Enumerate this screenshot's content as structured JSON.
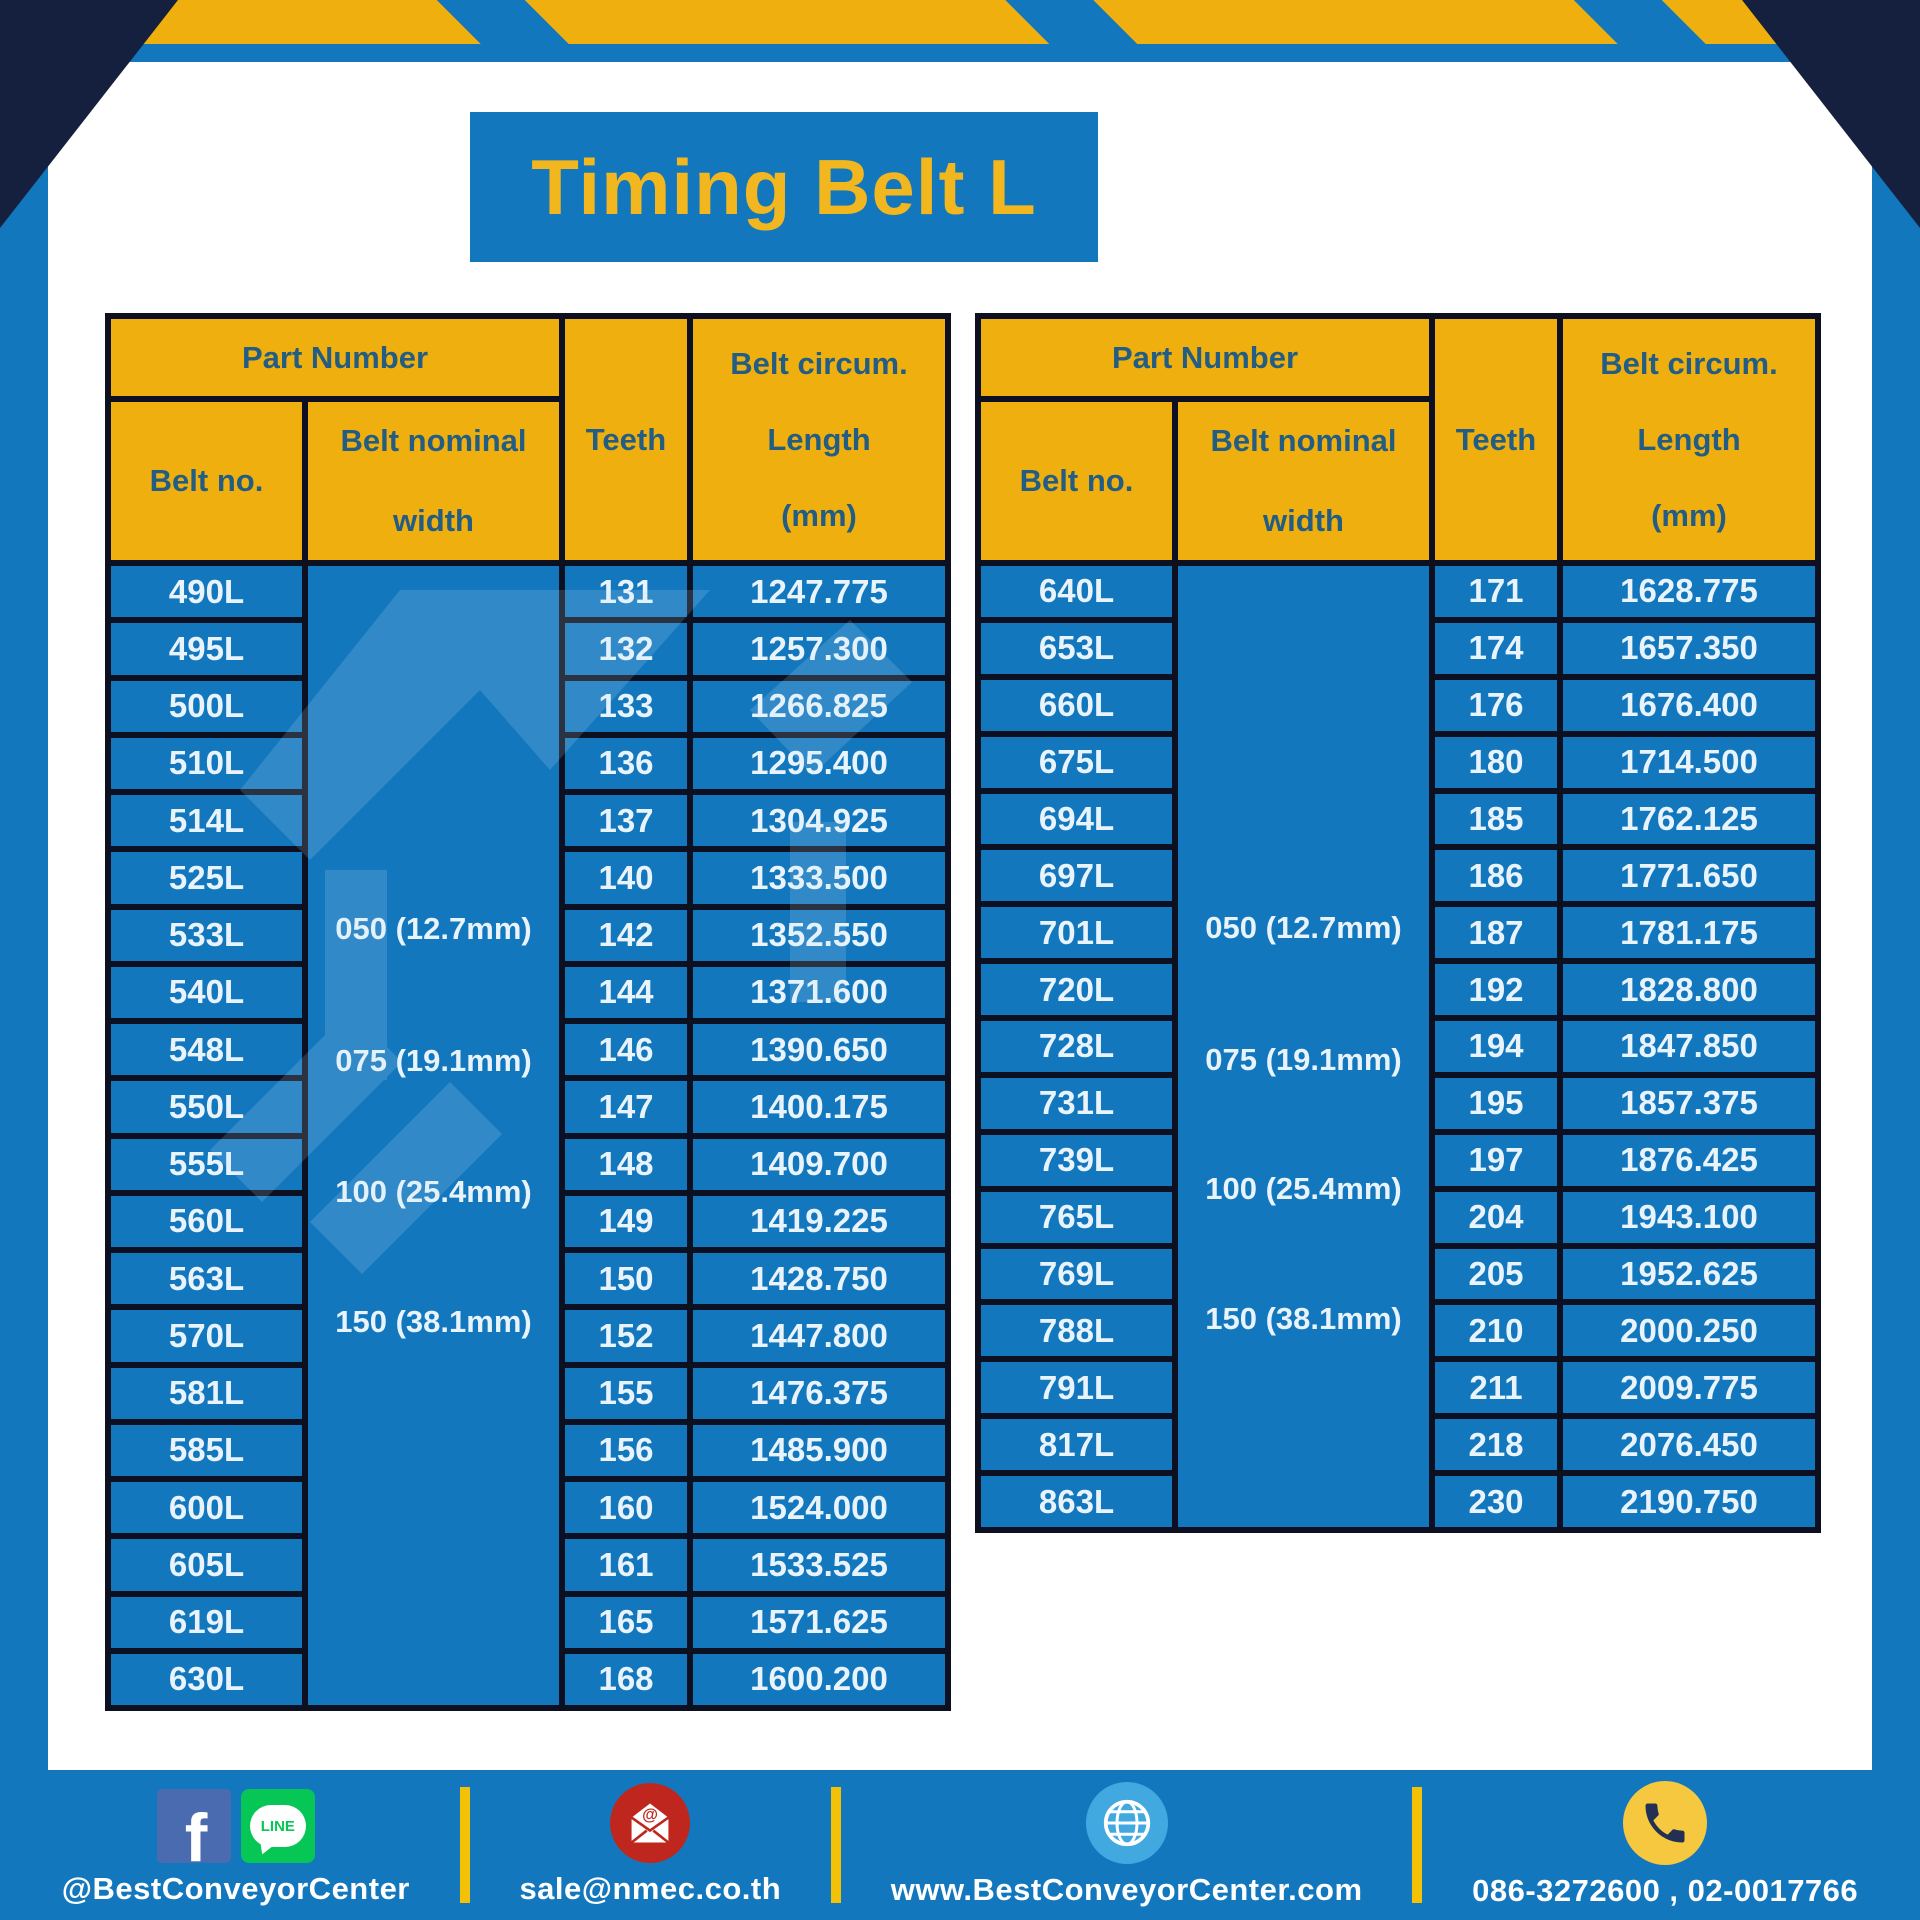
{
  "title": "Timing Belt L",
  "header": {
    "part_number": "Part Number",
    "belt_no": "Belt no.",
    "belt_nominal_1": "Belt nominal",
    "belt_nominal_2": "width",
    "teeth": "Teeth",
    "circ_1": "Belt circum.",
    "circ_2": "Length",
    "circ_3": "(mm)"
  },
  "width_options": [
    "050 (12.7mm)",
    "075 (19.1mm)",
    "100 (25.4mm)",
    "150 (38.1mm)"
  ],
  "tables": [
    {
      "rows": [
        [
          "490L",
          "131",
          "1247.775"
        ],
        [
          "495L",
          "132",
          "1257.300"
        ],
        [
          "500L",
          "133",
          "1266.825"
        ],
        [
          "510L",
          "136",
          "1295.400"
        ],
        [
          "514L",
          "137",
          "1304.925"
        ],
        [
          "525L",
          "140",
          "1333.500"
        ],
        [
          "533L",
          "142",
          "1352.550"
        ],
        [
          "540L",
          "144",
          "1371.600"
        ],
        [
          "548L",
          "146",
          "1390.650"
        ],
        [
          "550L",
          "147",
          "1400.175"
        ],
        [
          "555L",
          "148",
          "1409.700"
        ],
        [
          "560L",
          "149",
          "1419.225"
        ],
        [
          "563L",
          "150",
          "1428.750"
        ],
        [
          "570L",
          "152",
          "1447.800"
        ],
        [
          "581L",
          "155",
          "1476.375"
        ],
        [
          "585L",
          "156",
          "1485.900"
        ],
        [
          "600L",
          "160",
          "1524.000"
        ],
        [
          "605L",
          "161",
          "1533.525"
        ],
        [
          "619L",
          "165",
          "1571.625"
        ],
        [
          "630L",
          "168",
          "1600.200"
        ]
      ]
    },
    {
      "rows": [
        [
          "640L",
          "171",
          "1628.775"
        ],
        [
          "653L",
          "174",
          "1657.350"
        ],
        [
          "660L",
          "176",
          "1676.400"
        ],
        [
          "675L",
          "180",
          "1714.500"
        ],
        [
          "694L",
          "185",
          "1762.125"
        ],
        [
          "697L",
          "186",
          "1771.650"
        ],
        [
          "701L",
          "187",
          "1781.175"
        ],
        [
          "720L",
          "192",
          "1828.800"
        ],
        [
          "728L",
          "194",
          "1847.850"
        ],
        [
          "731L",
          "195",
          "1857.375"
        ],
        [
          "739L",
          "197",
          "1876.425"
        ],
        [
          "765L",
          "204",
          "1943.100"
        ],
        [
          "769L",
          "205",
          "1952.625"
        ],
        [
          "788L",
          "210",
          "2000.250"
        ],
        [
          "791L",
          "211",
          "2009.775"
        ],
        [
          "817L",
          "218",
          "2076.450"
        ],
        [
          "863L",
          "230",
          "2190.750"
        ]
      ]
    }
  ],
  "footer": {
    "facebook_letter": "f",
    "line_badge": "LINE",
    "social_label": "@BestConveyorCenter",
    "email": "sale@nmec.co.th",
    "website": "www.BestConveyorCenter.com",
    "phone": "086-3272600 , 02-0017766"
  },
  "colors": {
    "frame_blue": "#1377be",
    "accent_yellow": "#efb00f",
    "title_yellow": "#f2b71e",
    "header_text_blue": "#235d84",
    "corner_navy": "#15203e",
    "line_green": "#06c755",
    "facebook_blue": "#4a6bb0",
    "mail_red": "#bf271e",
    "globe_blue": "#41a9e0",
    "phone_yellow": "#f5c840"
  }
}
